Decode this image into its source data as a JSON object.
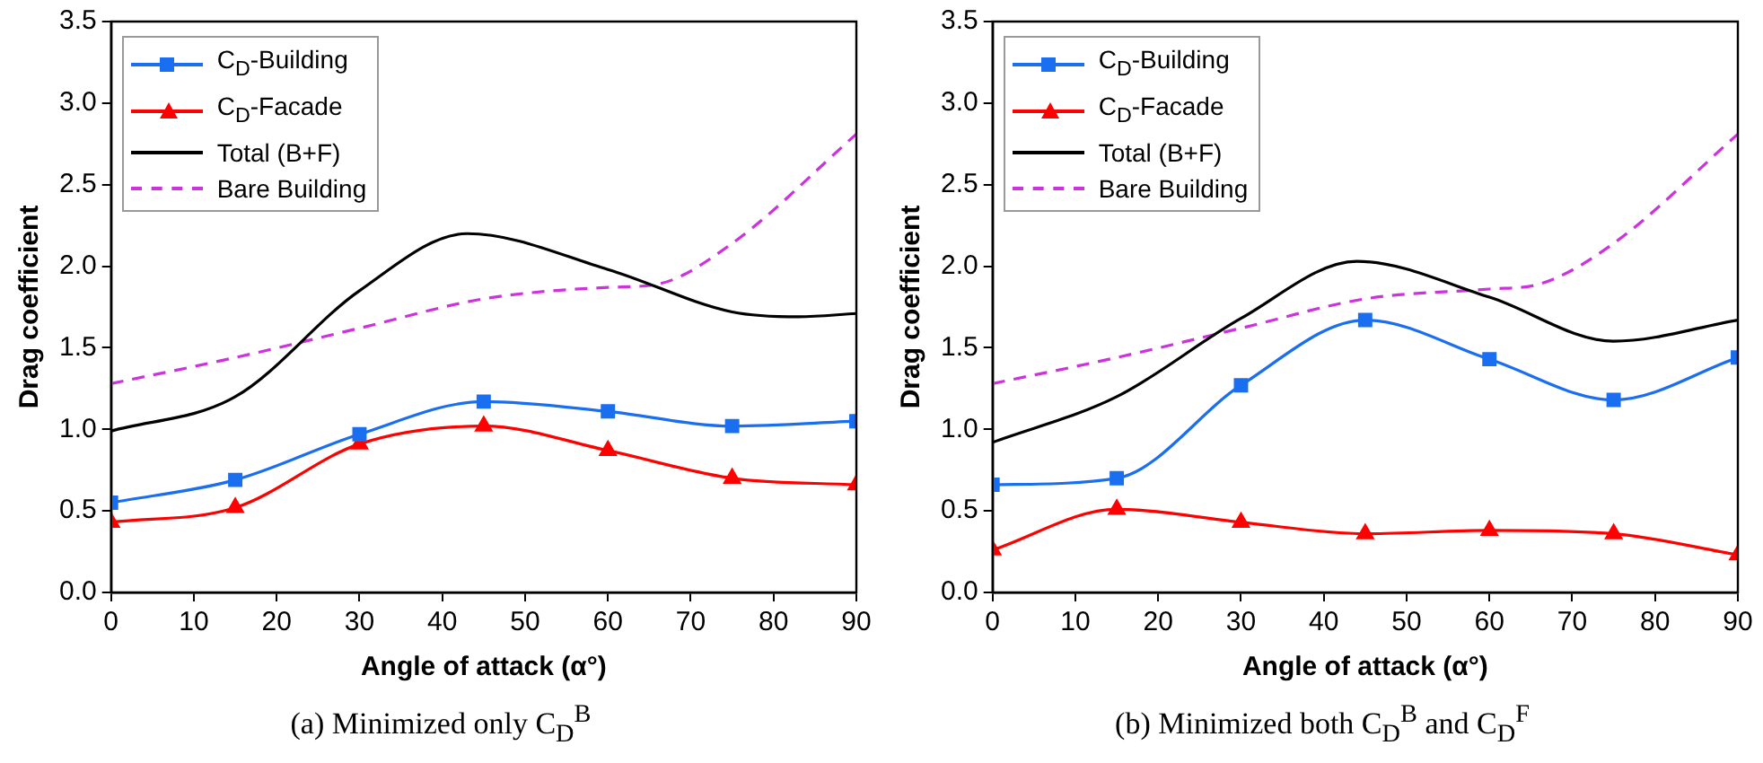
{
  "chart_data": [
    {
      "type": "line",
      "xlabel": "Angle of attack (α°)",
      "ylabel": "Drag coefficient",
      "xlim": [
        0,
        90
      ],
      "xticks": [
        0,
        10,
        20,
        30,
        40,
        50,
        60,
        70,
        80,
        90
      ],
      "ylim": [
        0,
        3.5
      ],
      "yticks": [
        {
          "value": 0,
          "label": "0.0"
        },
        {
          "value": 0.5,
          "label": "0.5"
        },
        {
          "value": 1,
          "label": "1.0"
        },
        {
          "value": 1.5,
          "label": "1.5"
        },
        {
          "value": 2,
          "label": "2.0"
        },
        {
          "value": 2.5,
          "label": "2.5"
        },
        {
          "value": 3,
          "label": "3.0"
        },
        {
          "value": 3.5,
          "label": "3.5"
        }
      ],
      "grid": false,
      "legend": "top left",
      "annotations": [
        "(a) Minimized only C$_{D}$$^{B}$"
      ],
      "series": [
        {
          "name": "C$_{D}$-Building",
          "color": "#1a6ef0",
          "marker": "square",
          "line_style": "solid",
          "x": [
            0,
            15,
            30,
            45,
            60,
            75,
            90
          ],
          "values": [
            0.55,
            0.69,
            0.97,
            1.17,
            1.11,
            1.02,
            1.05
          ]
        },
        {
          "name": "C$_{D}$-Facade",
          "color": "#ff0000",
          "marker": "triangle",
          "line_style": "solid",
          "x": [
            0,
            15,
            30,
            45,
            60,
            75,
            90
          ],
          "values": [
            0.43,
            0.52,
            0.91,
            1.02,
            0.87,
            0.7,
            0.66
          ]
        },
        {
          "name": "Total (B+F)",
          "color": "#000000",
          "marker": "none",
          "line_style": "solid",
          "x": [
            0,
            15,
            30,
            43,
            60,
            75,
            83,
            90
          ],
          "values": [
            0.99,
            1.2,
            1.85,
            2.2,
            1.98,
            1.72,
            1.69,
            1.71
          ]
        },
        {
          "name": "Bare Building",
          "color": "#cc33dd",
          "marker": "none",
          "line_style": "dashed",
          "x": [
            0,
            15,
            30,
            45,
            60,
            66,
            75,
            90
          ],
          "values": [
            1.28,
            1.44,
            1.62,
            1.8,
            1.87,
            1.89,
            2.14,
            2.81
          ]
        }
      ]
    },
    {
      "type": "line",
      "xlabel": "Angle of attack (α°)",
      "ylabel": "Drag coefficient",
      "xlim": [
        0,
        90
      ],
      "xticks": [
        0,
        10,
        20,
        30,
        40,
        50,
        60,
        70,
        80,
        90
      ],
      "ylim": [
        0,
        3.5
      ],
      "yticks": [
        {
          "value": 0,
          "label": "0.0"
        },
        {
          "value": 0.5,
          "label": "0.5"
        },
        {
          "value": 1,
          "label": "1.0"
        },
        {
          "value": 1.5,
          "label": "1.5"
        },
        {
          "value": 2,
          "label": "2.0"
        },
        {
          "value": 2.5,
          "label": "2.5"
        },
        {
          "value": 3,
          "label": "3.0"
        },
        {
          "value": 3.5,
          "label": "3.5"
        }
      ],
      "grid": false,
      "legend": "top left",
      "annotations": [
        "(b) Minimized both C$_{D}$$^{B}$ and C$_{D}$$^{F}$"
      ],
      "series": [
        {
          "name": "C$_{D}$-Building",
          "color": "#1a6ef0",
          "marker": "square",
          "line_style": "solid",
          "x": [
            0,
            15,
            30,
            45,
            60,
            75,
            90
          ],
          "values": [
            0.66,
            0.7,
            1.27,
            1.67,
            1.43,
            1.18,
            1.44
          ]
        },
        {
          "name": "C$_{D}$-Facade",
          "color": "#ff0000",
          "marker": "triangle",
          "line_style": "solid",
          "x": [
            0,
            15,
            30,
            45,
            60,
            75,
            90
          ],
          "values": [
            0.26,
            0.51,
            0.43,
            0.36,
            0.38,
            0.36,
            0.23
          ]
        },
        {
          "name": "Total (B+F)",
          "color": "#000000",
          "marker": "none",
          "line_style": "solid",
          "x": [
            0,
            15,
            30,
            44,
            60,
            75,
            90
          ],
          "values": [
            0.92,
            1.2,
            1.68,
            2.03,
            1.81,
            1.54,
            1.67
          ]
        },
        {
          "name": "Bare Building",
          "color": "#cc33dd",
          "marker": "none",
          "line_style": "dashed",
          "x": [
            0,
            15,
            30,
            45,
            60,
            66,
            75,
            90
          ],
          "values": [
            1.28,
            1.44,
            1.62,
            1.8,
            1.86,
            1.89,
            2.14,
            2.81
          ]
        }
      ]
    }
  ]
}
